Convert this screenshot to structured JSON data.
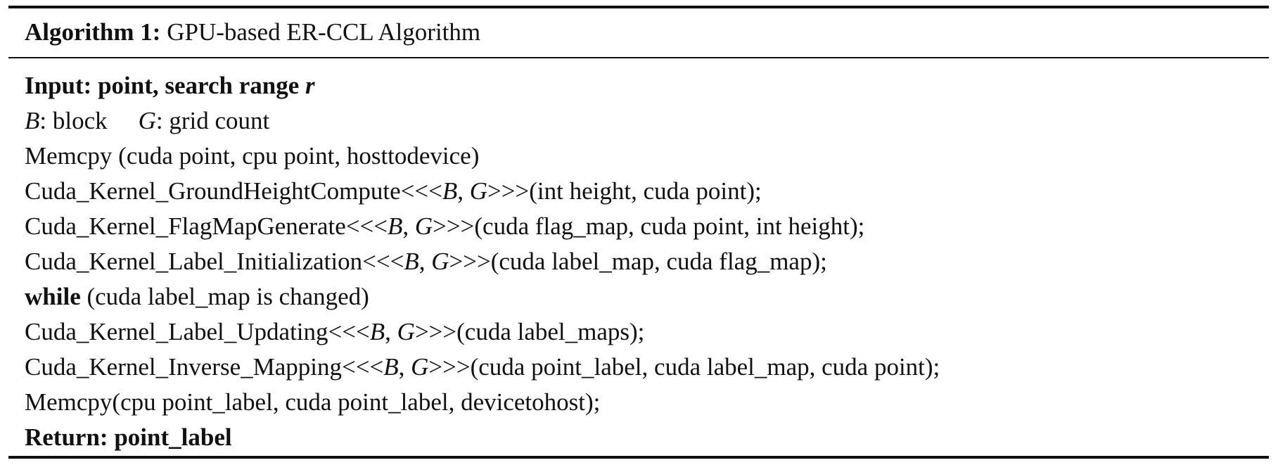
{
  "algorithm": {
    "label": "Algorithm 1:",
    "title": "GPU-based ER-CCL Algorithm",
    "input": {
      "keyword": "Input:",
      "text": "point, search range ",
      "var": "r"
    },
    "params": {
      "b_var": "B",
      "b_text": ": block",
      "g_var": "G",
      "g_text": ": grid count"
    },
    "memcpy_in": "Memcpy (cuda point, cpu point, hosttodevice)",
    "kernels": [
      {
        "name": "Cuda_Kernel_GroundHeightCompute<<<",
        "b": "B",
        "sep": ", ",
        "g": "G",
        "args": ">>>(int height, cuda point);"
      },
      {
        "name": "Cuda_Kernel_FlagMapGenerate<<<",
        "b": "B",
        "sep": ", ",
        "g": "G",
        "args": ">>>(cuda flag_map, cuda point, int height);"
      },
      {
        "name": "Cuda_Kernel_Label_Initialization<<<",
        "b": "B",
        "sep": ", ",
        "g": "G",
        "args": ">>>(cuda label_map, cuda flag_map);"
      }
    ],
    "loop": {
      "keyword": "while",
      "condition": " (cuda label_map is changed)"
    },
    "kernels_after": [
      {
        "name": "Cuda_Kernel_Label_Updating<<<",
        "b": "B",
        "sep": ", ",
        "g": "G",
        "args": ">>>(cuda label_maps);"
      },
      {
        "name": "Cuda_Kernel_Inverse_Mapping<<<",
        "b": "B",
        "sep": ", ",
        "g": "G",
        "args": ">>>(cuda point_label, cuda label_map, cuda point);"
      }
    ],
    "memcpy_out": "Memcpy(cpu point_label, cuda point_label, devicetohost);",
    "return": {
      "keyword": "Return:",
      "text": " point_label"
    }
  }
}
